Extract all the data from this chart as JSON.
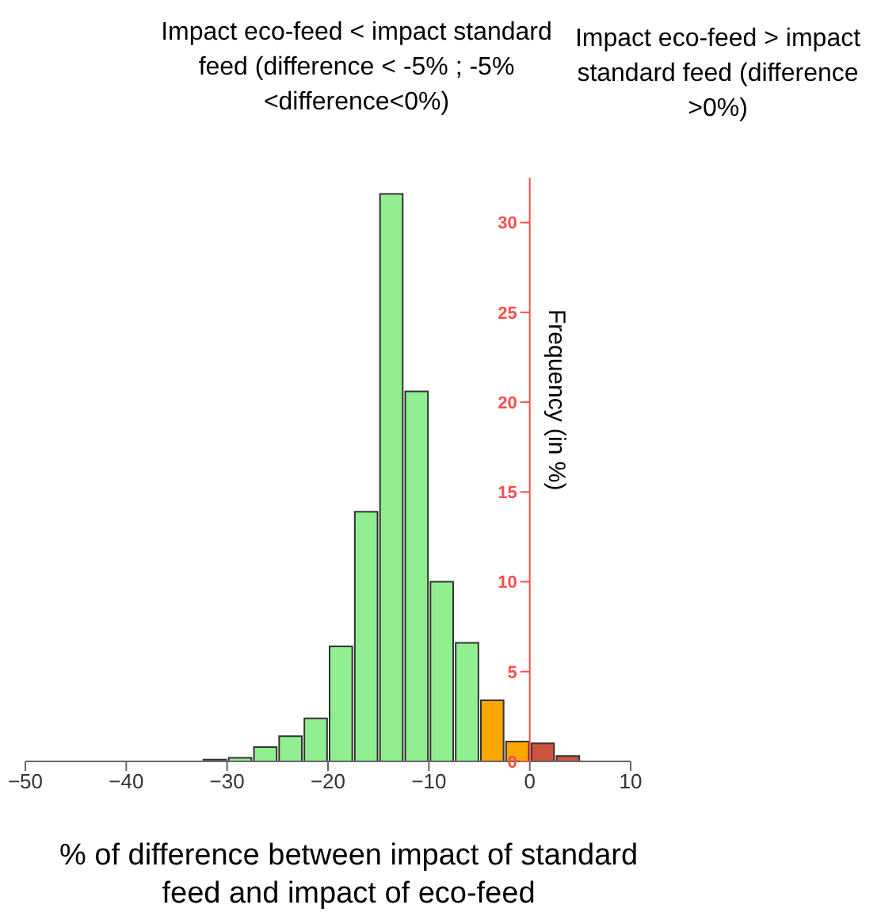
{
  "chart_data": {
    "type": "histogram",
    "annotations": [
      "Impact eco-feed < impact standard feed (difference < -5% ; -5%<difference<0%)",
      "Impact eco-feed > impact standard feed (difference >0%)"
    ],
    "xlabel": "% of difference between impact of standard feed and impact of eco-feed",
    "ylabel": "Frequency (in %)",
    "bins": [
      -32.5,
      -30,
      -27.5,
      -25,
      -22.5,
      -20,
      -17.5,
      -15,
      -12.5,
      -10,
      -7.5,
      -5,
      -2.5,
      0,
      2.5,
      5
    ],
    "values": [
      0.1,
      0.2,
      0.8,
      1.4,
      2.4,
      6.4,
      13.9,
      31.6,
      20.6,
      10.0,
      6.6,
      3.4,
      1.1,
      1.0,
      0.3
    ],
    "colors": [
      "#90ee90",
      "#90ee90",
      "#90ee90",
      "#90ee90",
      "#90ee90",
      "#90ee90",
      "#90ee90",
      "#90ee90",
      "#90ee90",
      "#90ee90",
      "#90ee90",
      "#ffa500",
      "#ffa500",
      "#cd5440",
      "#cd5440"
    ],
    "xlim": [
      -50,
      10
    ],
    "xticks": [
      -50,
      -40,
      -30,
      -20,
      -10,
      0,
      10
    ],
    "ylim": [
      0,
      32.5
    ],
    "yticks": [
      0,
      5,
      10,
      15,
      20,
      25,
      30
    ]
  }
}
